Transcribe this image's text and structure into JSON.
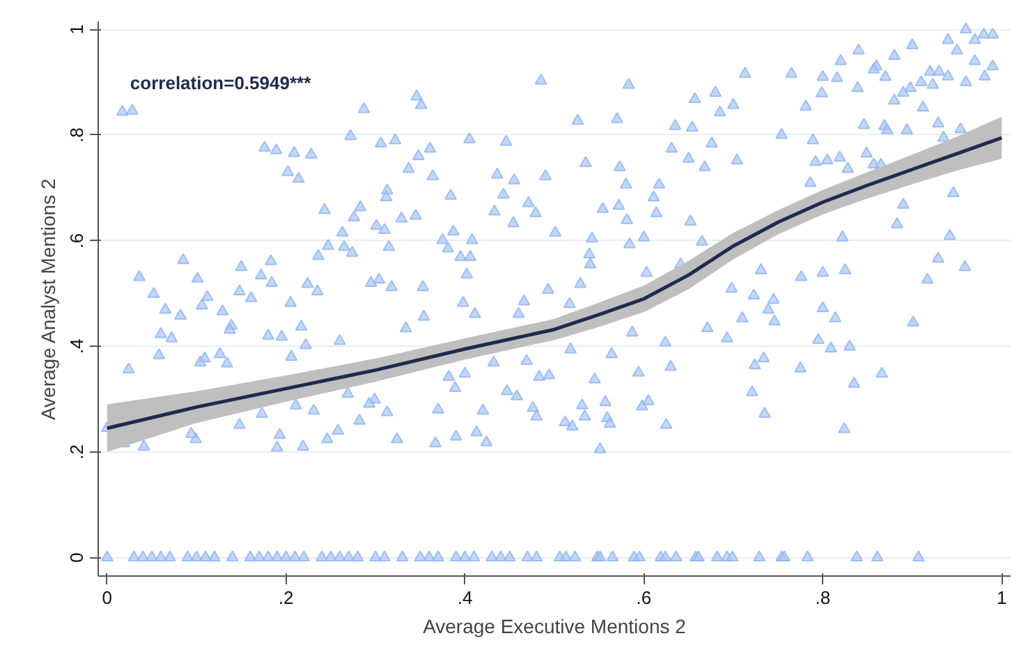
{
  "chart_data": {
    "type": "scatter",
    "xlabel": "Average Executive Mentions 2",
    "ylabel": "Average Analyst Mentions 2",
    "annotations": [
      "correlation=0.5949***"
    ],
    "xlim": [
      -0.01,
      1.01
    ],
    "ylim": [
      -0.035,
      1.015
    ],
    "xticks": [
      0,
      {
        "value": 0.2,
        "label": ".2"
      },
      {
        "value": 0.4,
        "label": ".4"
      },
      {
        "value": 0.6,
        "label": ".6"
      },
      {
        "value": 0.8,
        "label": ".8"
      },
      1
    ],
    "yticks": [
      0,
      {
        "value": 0.2,
        "label": ".2"
      },
      {
        "value": 0.4,
        "label": ".4"
      },
      {
        "value": 0.6,
        "label": ".6"
      },
      {
        "value": 0.8,
        "label": ".8"
      },
      1
    ],
    "grid": "y",
    "series": [
      {
        "type": "scatter",
        "marker": "triangle",
        "color": "#a9c6f5",
        "x": [
          0,
          0.03,
          0.04,
          0.05,
          0.06,
          0.07,
          0.09,
          0.1,
          0.11,
          0.12,
          0.14,
          0.16,
          0.17,
          0.18,
          0.19,
          0.2,
          0.21,
          0.22,
          0.24,
          0.25,
          0.26,
          0.27,
          0.28,
          0.3,
          0.31,
          0.33,
          0.35,
          0.36,
          0.37,
          0.39,
          0.4,
          0.41,
          0.43,
          0.44,
          0.45,
          0.47,
          0.48,
          0.506,
          0.513,
          0.523,
          0.548,
          0.551,
          0.565,
          0.589,
          0.595,
          0.619,
          0.624,
          0.636,
          0.658,
          0.661,
          0.682,
          0.693,
          0.699,
          0.729,
          0.754,
          0.757,
          0.783,
          0.838,
          0.861,
          0.907,
          0.82,
          0.84,
          0.86,
          0.88,
          0.9,
          0.92,
          0.94,
          0.95,
          0.96,
          0.97,
          0.98,
          0.99,
          0.97,
          0.93,
          0.91,
          0.89,
          0.87,
          0.99,
          0.96,
          0.8,
          0.583,
          0.526,
          0.57,
          0.657,
          0.68,
          0.685,
          0.7,
          0.713,
          0.765,
          0.635,
          0.654,
          0.631,
          0.65,
          0.676,
          0.704,
          0.668,
          0.535,
          0.573,
          0.58,
          0.617,
          0.611,
          0.554,
          0.572,
          0.581,
          0.614,
          0.652,
          0.501,
          0.542,
          0.584,
          0.6,
          0.539,
          0.54,
          0.603,
          0.641,
          0.665,
          0.731,
          0.776,
          0.8,
          0.825,
          0.529,
          0.698,
          0.822,
          0.942,
          0.959,
          0.929,
          0.917,
          0.883,
          0.89,
          0.946,
          0.754,
          0.789,
          0.792,
          0.805,
          0.819,
          0.828,
          0.786,
          0.849,
          0.857,
          0.865,
          0.846,
          0.869,
          0.894,
          0.929,
          0.935,
          0.954,
          0.872,
          0.781,
          0.799,
          0.816,
          0.839,
          0.857,
          0.88,
          0.898,
          0.912,
          0.923,
          0.94,
          0.981,
          0.017,
          0.028,
          0.176,
          0.189,
          0.209,
          0.228,
          0.202,
          0.214,
          0.287,
          0.272,
          0.346,
          0.351,
          0.306,
          0.322,
          0.348,
          0.361,
          0.405,
          0.446,
          0.485,
          0.337,
          0.364,
          0.313,
          0.312,
          0.243,
          0.283,
          0.276,
          0.301,
          0.31,
          0.329,
          0.345,
          0.384,
          0.436,
          0.443,
          0.455,
          0.49,
          0.433,
          0.454,
          0.471,
          0.479,
          0.387,
          0.375,
          0.381,
          0.395,
          0.406,
          0.408,
          0.402,
          0.263,
          0.247,
          0.236,
          0.265,
          0.274,
          0.315,
          0.085,
          0.036,
          0.101,
          0.15,
          0.172,
          0.183,
          0.184,
          0.224,
          0.235,
          0.295,
          0.304,
          0.318,
          0.353,
          0.493,
          0.052,
          0.065,
          0.082,
          0.06,
          0.072,
          0.058,
          0.024,
          0.106,
          0.112,
          0.129,
          0.148,
          0.161,
          0.139,
          0.137,
          0.126,
          0.109,
          0.104,
          0.134,
          0.18,
          0.195,
          0.205,
          0.217,
          0.222,
          0.206,
          0.26,
          0.334,
          0.354,
          0.398,
          0.411,
          0.46,
          0.466,
          0.469,
          0.432,
          0.382,
          0.4,
          0.389,
          0.37,
          0.42,
          0.483,
          0.494,
          0.447,
          0.458,
          0.476,
          0.48,
          0.39,
          0.413,
          0.424,
          0.367,
          0.324,
          0.313,
          0.299,
          0.293,
          0.282,
          0.269,
          0.258,
          0.246,
          0.219,
          0.19,
          0.193,
          0.231,
          0.211,
          0.173,
          0.148,
          0.099,
          0.094,
          0.041,
          0,
          0.019,
          0.723,
          0.745,
          0.739,
          0.746,
          0.71,
          0.8,
          0.814,
          0.901,
          0.795,
          0.809,
          0.83,
          0.671,
          0.693,
          0.624,
          0.587,
          0.564,
          0.518,
          0.545,
          0.594,
          0.63,
          0.724,
          0.734,
          0.775,
          0.866,
          0.835,
          0.721,
          0.735,
          0.824,
          0.531,
          0.557,
          0.534,
          0.559,
          0.562,
          0.512,
          0.52,
          0.598,
          0.605,
          0.625,
          0.551,
          0.517
        ],
        "values": [
          0,
          0,
          0,
          0,
          0,
          0,
          0,
          0,
          0,
          0,
          0,
          0,
          0,
          0,
          0,
          0,
          0,
          0,
          0,
          0,
          0,
          0,
          0,
          0,
          0,
          0,
          0,
          0,
          0,
          0,
          0,
          0,
          0,
          0,
          0,
          0,
          0,
          0,
          0,
          0,
          0,
          0,
          0,
          0,
          0,
          0,
          0,
          0,
          0,
          0,
          0,
          0,
          0,
          0,
          0,
          0,
          0,
          0,
          0,
          0,
          0.94,
          0.96,
          0.93,
          0.95,
          0.97,
          0.92,
          0.98,
          0.96,
          1,
          0.98,
          0.99,
          0.99,
          0.94,
          0.92,
          0.9,
          0.88,
          0.91,
          0.93,
          0.9,
          0.91,
          0.895,
          0.827,
          0.83,
          0.868,
          0.88,
          0.843,
          0.857,
          0.916,
          0.916,
          0.817,
          0.814,
          0.774,
          0.755,
          0.784,
          0.752,
          0.739,
          0.747,
          0.739,
          0.706,
          0.706,
          0.682,
          0.66,
          0.666,
          0.639,
          0.652,
          0.636,
          0.615,
          0.604,
          0.593,
          0.606,
          0.574,
          0.555,
          0.539,
          0.555,
          0.598,
          0.544,
          0.531,
          0.539,
          0.544,
          0.518,
          0.509,
          0.606,
          0.609,
          0.55,
          0.566,
          0.526,
          0.631,
          0.668,
          0.69,
          0.8,
          0.79,
          0.749,
          0.752,
          0.757,
          0.736,
          0.709,
          0.765,
          0.744,
          0.744,
          0.819,
          0.817,
          0.809,
          0.822,
          0.795,
          0.811,
          0.809,
          0.854,
          0.879,
          0.908,
          0.889,
          0.924,
          0.865,
          0.889,
          0.852,
          0.895,
          0.911,
          0.911,
          0.844,
          0.846,
          0.776,
          0.771,
          0.766,
          0.763,
          0.73,
          0.717,
          0.849,
          0.798,
          0.873,
          0.857,
          0.784,
          0.79,
          0.76,
          0.774,
          0.792,
          0.787,
          0.903,
          0.736,
          0.722,
          0.695,
          0.682,
          0.658,
          0.663,
          0.644,
          0.628,
          0.62,
          0.642,
          0.647,
          0.685,
          0.725,
          0.687,
          0.714,
          0.722,
          0.655,
          0.633,
          0.671,
          0.652,
          0.617,
          0.601,
          0.585,
          0.569,
          0.569,
          0.601,
          0.536,
          0.615,
          0.59,
          0.571,
          0.588,
          0.577,
          0.588,
          0.563,
          0.531,
          0.528,
          0.55,
          0.534,
          0.561,
          0.52,
          0.518,
          0.504,
          0.52,
          0.526,
          0.512,
          0.512,
          0.507,
          0.499,
          0.469,
          0.458,
          0.423,
          0.415,
          0.383,
          0.356,
          0.477,
          0.493,
          0.466,
          0.504,
          0.491,
          0.439,
          0.431,
          0.385,
          0.377,
          0.369,
          0.367,
          0.42,
          0.418,
          0.482,
          0.437,
          0.402,
          0.38,
          0.41,
          0.434,
          0.456,
          0.482,
          0.461,
          0.461,
          0.485,
          0.372,
          0.369,
          0.342,
          0.348,
          0.321,
          0.28,
          0.278,
          0.342,
          0.345,
          0.315,
          0.305,
          0.283,
          0.267,
          0.229,
          0.237,
          0.218,
          0.216,
          0.224,
          0.275,
          0.299,
          0.291,
          0.259,
          0.31,
          0.24,
          0.224,
          0.21,
          0.208,
          0.232,
          0.278,
          0.288,
          0.272,
          0.251,
          0.224,
          0.234,
          0.21,
          0.245,
          0.216,
          0.496,
          0.488,
          0.469,
          0.447,
          0.453,
          0.472,
          0.453,
          0.445,
          0.412,
          0.396,
          0.399,
          0.434,
          0.415,
          0.407,
          0.426,
          0.385,
          0.394,
          0.337,
          0.35,
          0.361,
          0.364,
          0.377,
          0.358,
          0.348,
          0.329,
          0.313,
          0.272,
          0.243,
          0.288,
          0.294,
          0.267,
          0.264,
          0.253,
          0.256,
          0.248,
          0.286,
          0.296,
          0.251,
          0.205,
          0.48
        ]
      },
      {
        "type": "line",
        "marker": "none",
        "color": "#1f2a4d",
        "x": [
          0,
          0.1,
          0.2,
          0.3,
          0.4,
          0.5,
          0.55,
          0.6,
          0.65,
          0.7,
          0.75,
          0.8,
          0.85,
          0.9,
          0.95,
          1
        ],
        "values": [
          0.245,
          0.285,
          0.32,
          0.355,
          0.395,
          0.432,
          0.46,
          0.49,
          0.535,
          0.59,
          0.635,
          0.673,
          0.705,
          0.735,
          0.765,
          0.795
        ],
        "lower": [
          0.2,
          0.255,
          0.295,
          0.333,
          0.375,
          0.412,
          0.437,
          0.465,
          0.508,
          0.565,
          0.612,
          0.65,
          0.68,
          0.707,
          0.733,
          0.755
        ],
        "upper": [
          0.29,
          0.315,
          0.345,
          0.377,
          0.415,
          0.452,
          0.483,
          0.515,
          0.562,
          0.615,
          0.658,
          0.696,
          0.73,
          0.763,
          0.797,
          0.835
        ]
      }
    ]
  }
}
